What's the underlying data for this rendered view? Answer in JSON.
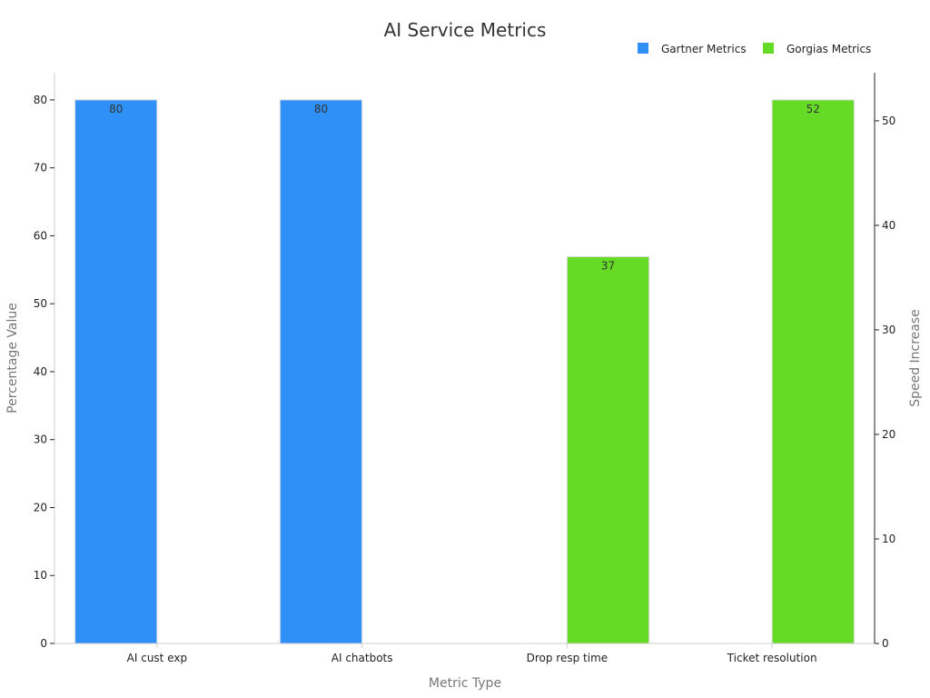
{
  "chart_data": {
    "type": "bar",
    "title": "AI Service Metrics",
    "xlabel": "Metric Type",
    "ylabel": "Percentage Value",
    "y2label": "Speed Increase",
    "categories": [
      "AI cust exp",
      "AI chatbots",
      "Drop resp time",
      "Ticket resolution"
    ],
    "ylim": [
      0,
      84
    ],
    "y2lim": [
      0,
      54.6
    ],
    "yticks": [
      0,
      10,
      20,
      30,
      40,
      50,
      60,
      70,
      80
    ],
    "y2ticks": [
      0,
      10,
      20,
      30,
      40,
      50
    ],
    "legend_position": "top-right",
    "grid": false,
    "series": [
      {
        "name": "Gartner Metrics",
        "axis": "left",
        "color": "#2f91f8",
        "values": [
          80,
          80,
          null,
          null
        ],
        "labels": [
          "80",
          "80",
          "",
          ""
        ]
      },
      {
        "name": "Gorgias Metrics",
        "axis": "right",
        "color": "#66db26",
        "values": [
          null,
          null,
          37,
          52
        ],
        "labels": [
          "",
          "",
          "37",
          "52"
        ]
      }
    ]
  }
}
